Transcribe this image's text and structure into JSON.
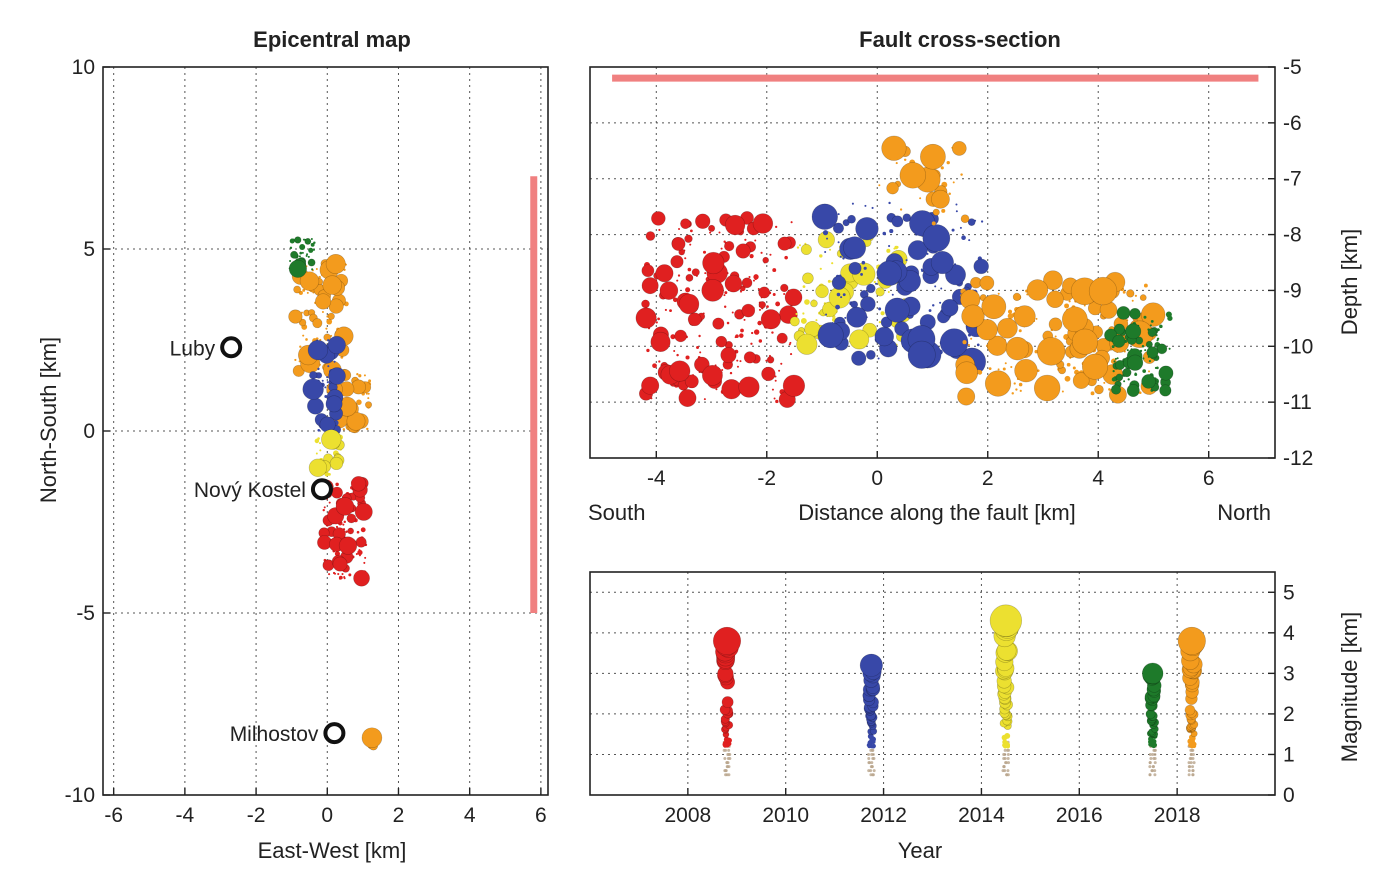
{
  "colors": {
    "2008": "#e02020",
    "2011": "#3848a8",
    "2014": "#ece030",
    "2017": "#1e7a2a",
    "2018": "#f39b1d",
    "fault_band": "#f08080"
  },
  "chart_data": [
    {
      "id": "map",
      "type": "scatter",
      "title": "Epicentral map",
      "xlabel": "East-West [km]",
      "ylabel": "North-South [km]",
      "xlim": [
        -6.3,
        6.2
      ],
      "ylim": [
        -10,
        10
      ],
      "xticks": [
        "-6",
        "-4",
        "-2",
        "0",
        "2",
        "4",
        "6"
      ],
      "yticks": [
        "-10",
        "-5",
        "0",
        "5",
        "10"
      ],
      "grid": true,
      "fault_band": {
        "x": 5.8,
        "y": [
          -5,
          7
        ]
      },
      "towns": [
        {
          "name": "Luby",
          "x": -2.7,
          "y": 2.3
        },
        {
          "name": "Nový Kostel",
          "x": -0.15,
          "y": -1.6
        },
        {
          "name": "Milhostov",
          "x": 0.2,
          "y": -8.3
        }
      ],
      "clusters": [
        {
          "series": "2018",
          "x": [
            -0.9,
            0.6
          ],
          "y": [
            1.5,
            4.8
          ],
          "r": [
            1,
            10
          ],
          "n": 120
        },
        {
          "series": "2018",
          "x": [
            0.2,
            1.2
          ],
          "y": [
            0,
            1.6
          ],
          "r": [
            1,
            10
          ],
          "n": 60
        },
        {
          "series": "2011",
          "x": [
            -0.4,
            0.3
          ],
          "y": [
            0,
            2.6
          ],
          "r": [
            1,
            11
          ],
          "n": 50
        },
        {
          "series": "2014",
          "x": [
            -0.3,
            0.4
          ],
          "y": [
            -1.2,
            0
          ],
          "r": [
            1,
            12
          ],
          "n": 40
        },
        {
          "series": "2008",
          "x": [
            -0.1,
            1.1
          ],
          "y": [
            -4.1,
            -1.4
          ],
          "r": [
            1,
            9
          ],
          "n": 130
        },
        {
          "series": "2017",
          "x": [
            -1.1,
            -0.3
          ],
          "y": [
            4.4,
            5.3
          ],
          "r": [
            1,
            9
          ],
          "n": 35
        },
        {
          "series": "2018",
          "x": [
            1.0,
            1.3
          ],
          "y": [
            -8.7,
            -8.4
          ],
          "r": [
            4,
            10
          ],
          "n": 4
        }
      ]
    },
    {
      "id": "section",
      "type": "scatter",
      "title": "Fault cross-section",
      "xlabel": "Distance along the fault [km]",
      "xlabel_left": "South",
      "xlabel_right": "North",
      "ylabel": "Depth [km]",
      "xlim": [
        -5.2,
        7.2
      ],
      "ylim": [
        -12,
        -5
      ],
      "xticks": [
        "-4",
        "-2",
        "0",
        "2",
        "4",
        "6"
      ],
      "yticks": [
        "-5",
        "-6",
        "-7",
        "-8",
        "-9",
        "-10",
        "-11",
        "-12"
      ],
      "grid": true,
      "fault_band": {
        "x": [
          -4.8,
          6.9
        ],
        "y": -5.2
      },
      "clusters": [
        {
          "series": "2008",
          "x": [
            -4.2,
            -1.5
          ],
          "y": [
            -11,
            -7.7
          ],
          "r": [
            1,
            11
          ],
          "n": 260
        },
        {
          "series": "2014",
          "x": [
            -1.5,
            0.5
          ],
          "y": [
            -10,
            -8
          ],
          "r": [
            1,
            12
          ],
          "n": 110
        },
        {
          "series": "2011",
          "x": [
            -1.0,
            1.9
          ],
          "y": [
            -10.3,
            -7.4
          ],
          "r": [
            1,
            14
          ],
          "n": 180
        },
        {
          "series": "2018",
          "x": [
            1.5,
            5.0
          ],
          "y": [
            -10.9,
            -8.8
          ],
          "r": [
            1,
            14
          ],
          "n": 200
        },
        {
          "series": "2018",
          "x": [
            0,
            1.6
          ],
          "y": [
            -7.8,
            -6.3
          ],
          "r": [
            1,
            13
          ],
          "n": 40
        },
        {
          "series": "2017",
          "x": [
            4.2,
            5.3
          ],
          "y": [
            -10.8,
            -9.4
          ],
          "r": [
            1,
            8
          ],
          "n": 110
        }
      ]
    },
    {
      "id": "magnitude",
      "type": "scatter",
      "xlabel": "Year",
      "ylabel": "Magnitude [km]",
      "xlim": [
        2006,
        2020
      ],
      "ylim": [
        0,
        5.5
      ],
      "xticks": [
        "2008",
        "2010",
        "2012",
        "2014",
        "2016",
        "2018"
      ],
      "yticks": [
        "0",
        "1",
        "2",
        "3",
        "4",
        "5"
      ],
      "grid": true,
      "series": [
        {
          "name": "2008",
          "x": 2008.8,
          "max": 3.8
        },
        {
          "name": "2011",
          "x": 2011.75,
          "max": 3.2
        },
        {
          "name": "2014",
          "x": 2014.5,
          "max": 4.3
        },
        {
          "name": "2017",
          "x": 2017.5,
          "max": 3.0
        },
        {
          "name": "2018",
          "x": 2018.3,
          "max": 3.8
        }
      ]
    }
  ]
}
